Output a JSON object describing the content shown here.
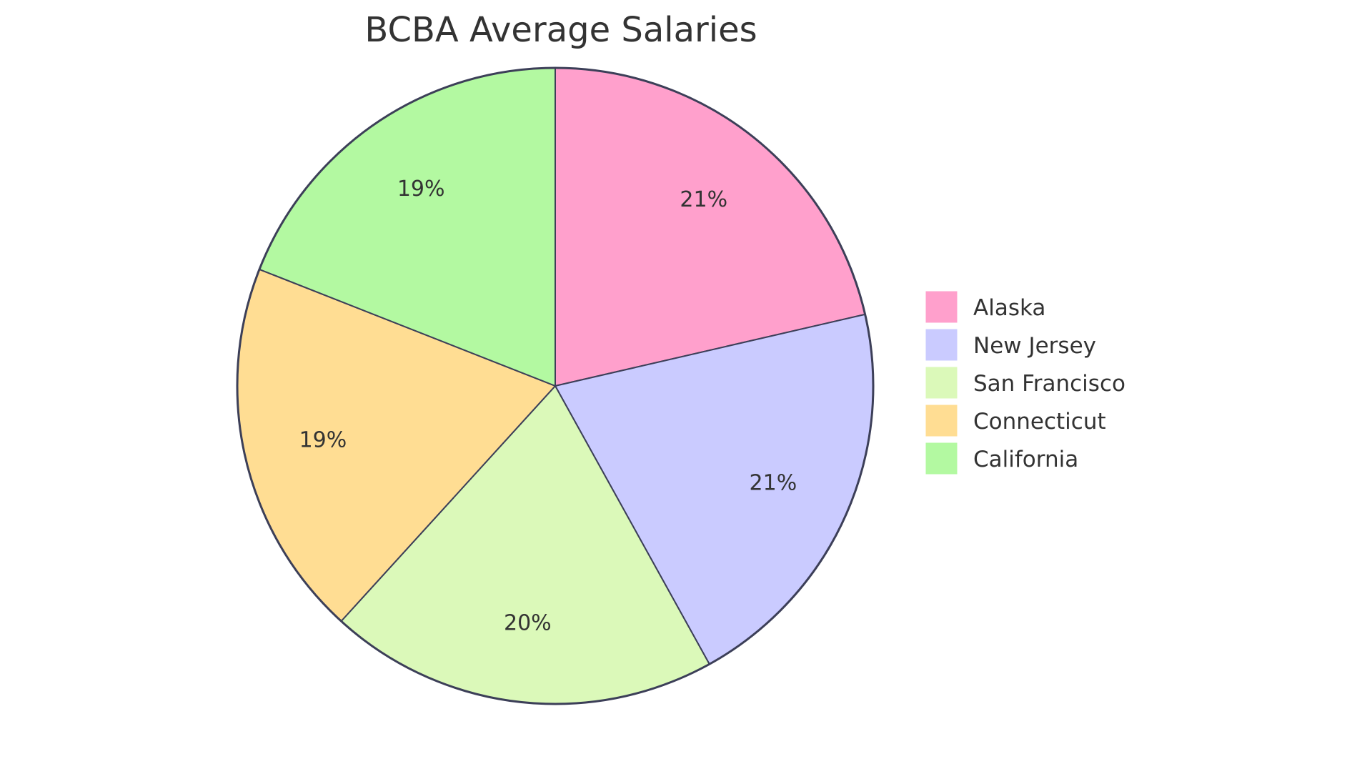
{
  "chart_data": {
    "type": "pie",
    "title": "BCBA Average Salaries",
    "categories": [
      "Alaska",
      "New Jersey",
      "San Francisco",
      "Connecticut",
      "California"
    ],
    "values": [
      21,
      21,
      20,
      19,
      19
    ],
    "value_labels": [
      "21%",
      "21%",
      "20%",
      "19%",
      "19%"
    ],
    "colors": [
      "#FFA0CC",
      "#CACBFF",
      "#DBF9B9",
      "#FFDD93",
      "#B3F9A1"
    ],
    "stroke_color": "#3C3F58",
    "legend_position": "right",
    "start_angle": "12 o'clock, clockwise"
  },
  "legend": {
    "items": [
      {
        "label": "Alaska",
        "color": "#FFA0CC"
      },
      {
        "label": "New Jersey",
        "color": "#CACBFF"
      },
      {
        "label": "San Francisco",
        "color": "#DBF9B9"
      },
      {
        "label": "Connecticut",
        "color": "#FFDD93"
      },
      {
        "label": "California",
        "color": "#B3F9A1"
      }
    ]
  }
}
